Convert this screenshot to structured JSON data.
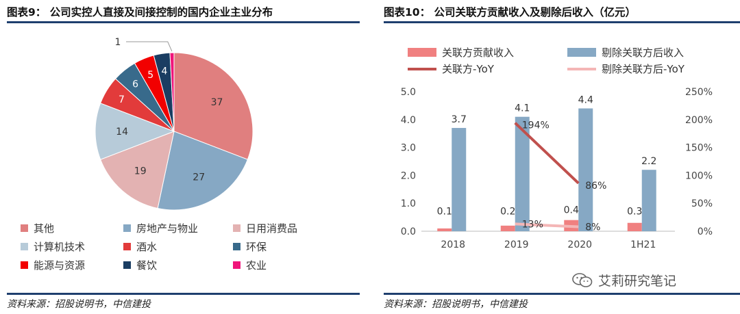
{
  "left": {
    "title": "图表9： 公司实控人直接及间接控制的国内企业主业分布",
    "source": "资料来源：招股说明书，中信建投"
  },
  "right": {
    "title": "图表10： 公司关联方贡献收入及剔除后收入（亿元）",
    "source": "资料来源：招股说明书，中信建投",
    "watermark": "艾莉研究笔记"
  },
  "chart_data": [
    {
      "type": "pie",
      "title": "公司实控人直接及间接控制的国内企业主业分布",
      "legend_position": "bottom",
      "slices": [
        {
          "label": "其他",
          "value": 37,
          "color": "#E07F7F"
        },
        {
          "label": "房地产与物业",
          "value": 27,
          "color": "#86A8C4"
        },
        {
          "label": "日用消费品",
          "value": 19,
          "color": "#E3B2B2"
        },
        {
          "label": "计算机技术",
          "value": 14,
          "color": "#B7CBD9"
        },
        {
          "label": "酒水",
          "value": 7,
          "color": "#E23B3B"
        },
        {
          "label": "环保",
          "value": 6,
          "color": "#386A8B"
        },
        {
          "label": "能源与资源",
          "value": 5,
          "color": "#F20000"
        },
        {
          "label": "餐饮",
          "value": 4,
          "color": "#1A3D62"
        },
        {
          "label": "农业",
          "value": 1,
          "color": "#F0157A"
        }
      ]
    },
    {
      "type": "bar",
      "title": "公司关联方贡献收入及剔除后收入（亿元）",
      "categories": [
        "2018",
        "2019",
        "2020",
        "1H21"
      ],
      "ylim": [
        0,
        5.0
      ],
      "yticks": [
        "0.0",
        "1.0",
        "2.0",
        "3.0",
        "4.0",
        "5.0"
      ],
      "y2lim": [
        0,
        250
      ],
      "y2ticks": [
        "0%",
        "50%",
        "100%",
        "150%",
        "200%",
        "250%"
      ],
      "legend_position": "top",
      "series": [
        {
          "name": "关联方贡献收入",
          "kind": "bar",
          "axis": "left",
          "color": "#F08080",
          "values": [
            0.1,
            0.2,
            0.4,
            0.3
          ],
          "labels": [
            "0.1",
            "0.2",
            "0.4",
            "0.3"
          ]
        },
        {
          "name": "剔除关联方后收入",
          "kind": "bar",
          "axis": "left",
          "color": "#86A8C4",
          "values": [
            3.7,
            4.1,
            4.4,
            2.2
          ],
          "labels": [
            "3.7",
            "4.1",
            "4.4",
            "2.2"
          ]
        },
        {
          "name": "关联方-YoY",
          "kind": "line",
          "axis": "right",
          "color": "#C0504D",
          "values": [
            null,
            194,
            86,
            null
          ],
          "labels": [
            null,
            "194%",
            "86%",
            null
          ]
        },
        {
          "name": "剔除关联方后-YoY",
          "kind": "line",
          "axis": "right",
          "color": "#F4B6B6",
          "values": [
            null,
            13,
            8,
            null
          ],
          "labels": [
            null,
            "13%",
            "8%",
            null
          ]
        }
      ]
    }
  ]
}
